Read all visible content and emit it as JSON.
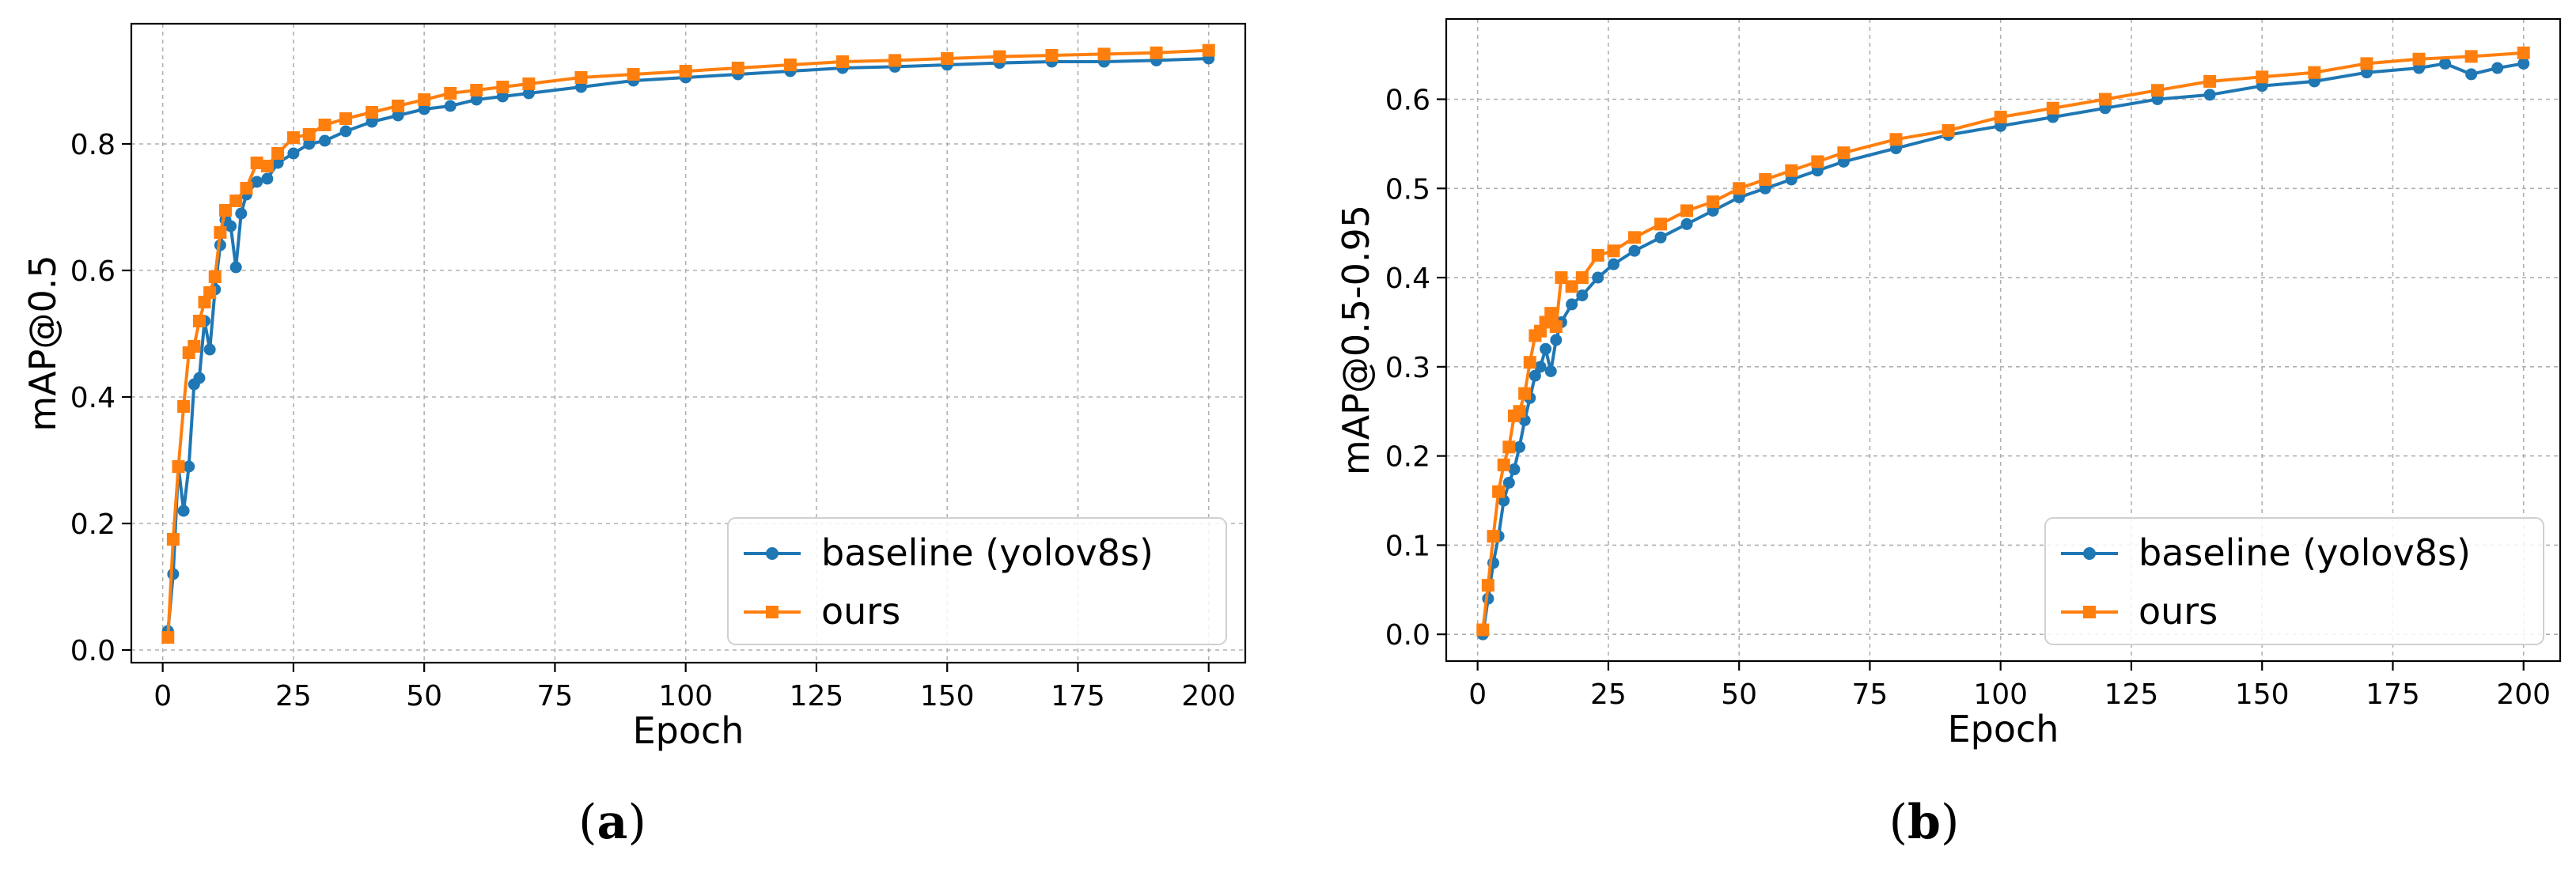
{
  "figure": {
    "panel_labels": [
      "(a)",
      "(b)"
    ]
  },
  "colors": {
    "baseline": "#1f77b4",
    "ours": "#ff7f0e"
  },
  "chart_data": [
    {
      "type": "line",
      "title": "",
      "panel_label": "(a)",
      "xlabel": "Epoch",
      "ylabel": "mAP@0.5",
      "xlim": [
        -6,
        207
      ],
      "ylim": [
        -0.02,
        0.99
      ],
      "xticks": [
        0,
        25,
        50,
        75,
        100,
        125,
        150,
        175,
        200
      ],
      "yticks": [
        0.0,
        0.2,
        0.4,
        0.6,
        0.8
      ],
      "ytick_labels": [
        "0.0",
        "0.2",
        "0.4",
        "0.6",
        "0.8"
      ],
      "grid": true,
      "legend_position": "lower-right",
      "series": [
        {
          "name": "baseline (yolov8s)",
          "marker": "circle",
          "color": "#1f77b4",
          "points": [
            [
              1,
              0.03
            ],
            [
              2,
              0.12
            ],
            [
              3,
              0.29
            ],
            [
              4,
              0.22
            ],
            [
              5,
              0.29
            ],
            [
              6,
              0.42
            ],
            [
              7,
              0.43
            ],
            [
              8,
              0.52
            ],
            [
              9,
              0.475
            ],
            [
              10,
              0.57
            ],
            [
              11,
              0.64
            ],
            [
              12,
              0.68
            ],
            [
              13,
              0.67
            ],
            [
              14,
              0.605
            ],
            [
              15,
              0.69
            ],
            [
              16,
              0.72
            ],
            [
              18,
              0.74
            ],
            [
              20,
              0.745
            ],
            [
              22,
              0.77
            ],
            [
              25,
              0.785
            ],
            [
              28,
              0.8
            ],
            [
              31,
              0.805
            ],
            [
              35,
              0.82
            ],
            [
              40,
              0.835
            ],
            [
              45,
              0.845
            ],
            [
              50,
              0.855
            ],
            [
              55,
              0.86
            ],
            [
              60,
              0.87
            ],
            [
              65,
              0.875
            ],
            [
              70,
              0.88
            ],
            [
              80,
              0.89
            ],
            [
              90,
              0.9
            ],
            [
              100,
              0.905
            ],
            [
              110,
              0.91
            ],
            [
              120,
              0.915
            ],
            [
              130,
              0.92
            ],
            [
              140,
              0.922
            ],
            [
              150,
              0.925
            ],
            [
              160,
              0.928
            ],
            [
              170,
              0.93
            ],
            [
              180,
              0.93
            ],
            [
              190,
              0.932
            ],
            [
              200,
              0.935
            ]
          ]
        },
        {
          "name": "ours",
          "marker": "square",
          "color": "#ff7f0e",
          "points": [
            [
              1,
              0.02
            ],
            [
              2,
              0.175
            ],
            [
              3,
              0.29
            ],
            [
              4,
              0.385
            ],
            [
              5,
              0.47
            ],
            [
              6,
              0.48
            ],
            [
              7,
              0.52
            ],
            [
              8,
              0.55
            ],
            [
              9,
              0.565
            ],
            [
              10,
              0.59
            ],
            [
              11,
              0.66
            ],
            [
              12,
              0.695
            ],
            [
              14,
              0.71
            ],
            [
              16,
              0.73
            ],
            [
              18,
              0.77
            ],
            [
              20,
              0.765
            ],
            [
              22,
              0.785
            ],
            [
              25,
              0.81
            ],
            [
              28,
              0.815
            ],
            [
              31,
              0.83
            ],
            [
              35,
              0.84
            ],
            [
              40,
              0.85
            ],
            [
              45,
              0.86
            ],
            [
              50,
              0.87
            ],
            [
              55,
              0.88
            ],
            [
              60,
              0.885
            ],
            [
              65,
              0.89
            ],
            [
              70,
              0.895
            ],
            [
              80,
              0.905
            ],
            [
              90,
              0.91
            ],
            [
              100,
              0.915
            ],
            [
              110,
              0.92
            ],
            [
              120,
              0.925
            ],
            [
              130,
              0.93
            ],
            [
              140,
              0.932
            ],
            [
              150,
              0.935
            ],
            [
              160,
              0.938
            ],
            [
              170,
              0.94
            ],
            [
              180,
              0.942
            ],
            [
              190,
              0.944
            ],
            [
              200,
              0.948
            ]
          ]
        }
      ]
    },
    {
      "type": "line",
      "title": "",
      "panel_label": "(b)",
      "xlabel": "Epoch",
      "ylabel": "mAP@0.5-0.95",
      "xlim": [
        -6,
        207
      ],
      "ylim": [
        -0.03,
        0.69
      ],
      "xticks": [
        0,
        25,
        50,
        75,
        100,
        125,
        150,
        175,
        200
      ],
      "yticks": [
        0.0,
        0.1,
        0.2,
        0.3,
        0.4,
        0.5,
        0.6
      ],
      "ytick_labels": [
        "0.0",
        "0.1",
        "0.2",
        "0.3",
        "0.4",
        "0.5",
        "0.6"
      ],
      "grid": true,
      "legend_position": "lower-right",
      "series": [
        {
          "name": "baseline (yolov8s)",
          "marker": "circle",
          "color": "#1f77b4",
          "points": [
            [
              1,
              0.0
            ],
            [
              2,
              0.04
            ],
            [
              3,
              0.08
            ],
            [
              4,
              0.11
            ],
            [
              5,
              0.15
            ],
            [
              6,
              0.17
            ],
            [
              7,
              0.185
            ],
            [
              8,
              0.21
            ],
            [
              9,
              0.24
            ],
            [
              10,
              0.265
            ],
            [
              11,
              0.29
            ],
            [
              12,
              0.3
            ],
            [
              13,
              0.32
            ],
            [
              14,
              0.295
            ],
            [
              15,
              0.33
            ],
            [
              16,
              0.35
            ],
            [
              18,
              0.37
            ],
            [
              20,
              0.38
            ],
            [
              23,
              0.4
            ],
            [
              26,
              0.415
            ],
            [
              30,
              0.43
            ],
            [
              35,
              0.445
            ],
            [
              40,
              0.46
            ],
            [
              45,
              0.475
            ],
            [
              50,
              0.49
            ],
            [
              55,
              0.5
            ],
            [
              60,
              0.51
            ],
            [
              65,
              0.52
            ],
            [
              70,
              0.53
            ],
            [
              80,
              0.545
            ],
            [
              90,
              0.56
            ],
            [
              100,
              0.57
            ],
            [
              110,
              0.58
            ],
            [
              120,
              0.59
            ],
            [
              130,
              0.6
            ],
            [
              140,
              0.605
            ],
            [
              150,
              0.615
            ],
            [
              160,
              0.62
            ],
            [
              170,
              0.63
            ],
            [
              180,
              0.635
            ],
            [
              185,
              0.64
            ],
            [
              190,
              0.628
            ],
            [
              195,
              0.635
            ],
            [
              200,
              0.64
            ]
          ]
        },
        {
          "name": "ours",
          "marker": "square",
          "color": "#ff7f0e",
          "points": [
            [
              1,
              0.005
            ],
            [
              2,
              0.055
            ],
            [
              3,
              0.11
            ],
            [
              4,
              0.16
            ],
            [
              5,
              0.19
            ],
            [
              6,
              0.21
            ],
            [
              7,
              0.245
            ],
            [
              8,
              0.25
            ],
            [
              9,
              0.27
            ],
            [
              10,
              0.305
            ],
            [
              11,
              0.335
            ],
            [
              12,
              0.34
            ],
            [
              13,
              0.35
            ],
            [
              14,
              0.36
            ],
            [
              15,
              0.345
            ],
            [
              16,
              0.4
            ],
            [
              18,
              0.39
            ],
            [
              20,
              0.4
            ],
            [
              23,
              0.425
            ],
            [
              26,
              0.43
            ],
            [
              30,
              0.445
            ],
            [
              35,
              0.46
            ],
            [
              40,
              0.475
            ],
            [
              45,
              0.485
            ],
            [
              50,
              0.5
            ],
            [
              55,
              0.51
            ],
            [
              60,
              0.52
            ],
            [
              65,
              0.53
            ],
            [
              70,
              0.54
            ],
            [
              80,
              0.555
            ],
            [
              90,
              0.565
            ],
            [
              100,
              0.58
            ],
            [
              110,
              0.59
            ],
            [
              120,
              0.6
            ],
            [
              130,
              0.61
            ],
            [
              140,
              0.62
            ],
            [
              150,
              0.625
            ],
            [
              160,
              0.63
            ],
            [
              170,
              0.64
            ],
            [
              180,
              0.645
            ],
            [
              190,
              0.648
            ],
            [
              200,
              0.652
            ]
          ]
        }
      ]
    }
  ]
}
